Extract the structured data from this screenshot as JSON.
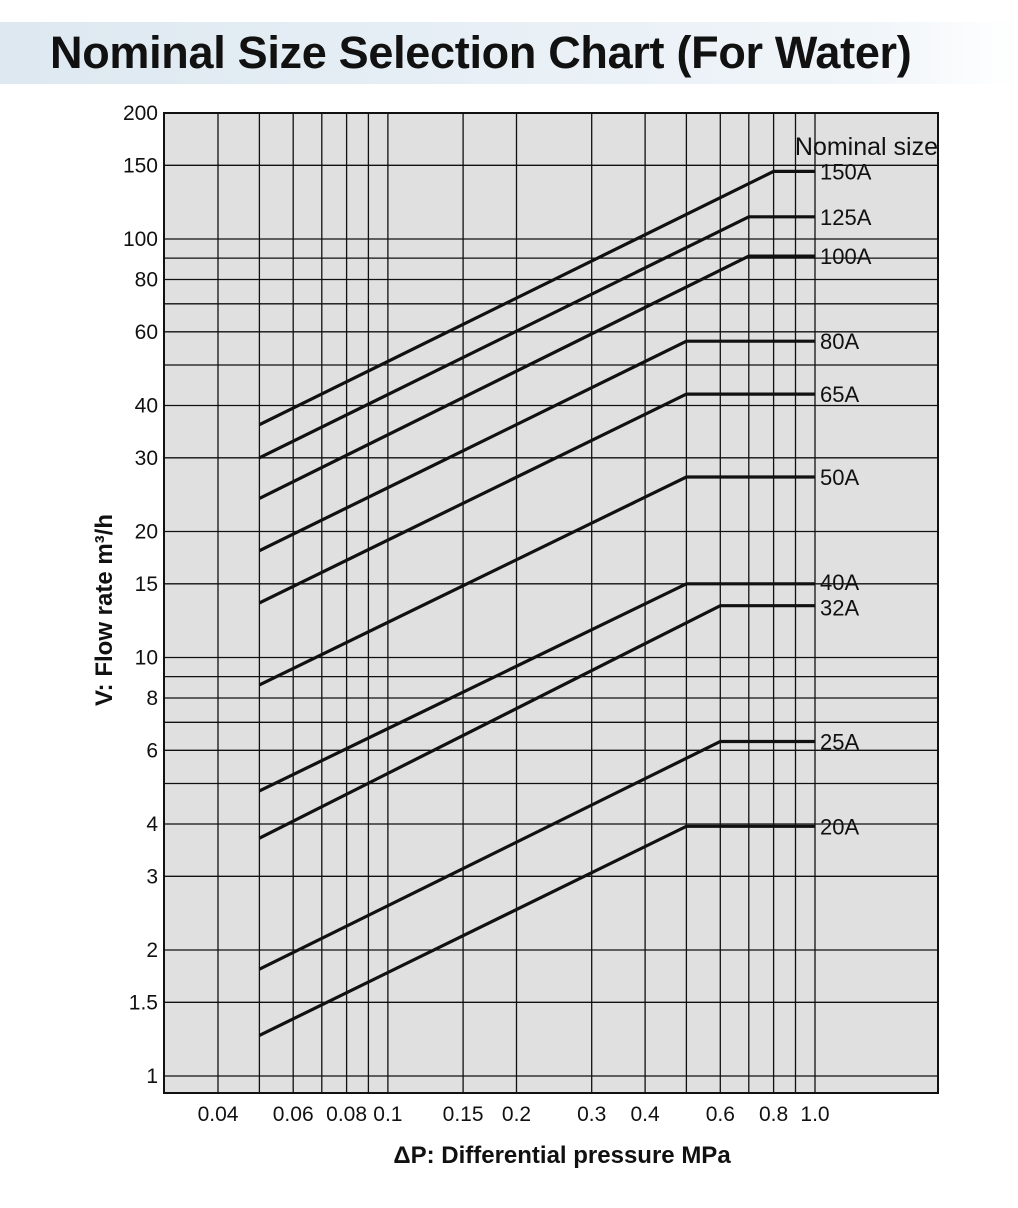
{
  "title": "Nominal Size Selection Chart (For Water)",
  "chart_data": {
    "type": "line",
    "title": "Nominal Size Selection Chart (For Water)",
    "xlabel": "ΔP: Differential pressure MPa",
    "ylabel": "V: Flow rate m³/h",
    "x_scale": "log",
    "y_scale": "log",
    "xlim": [
      0.03,
      1.4
    ],
    "ylim": [
      0.9,
      200
    ],
    "x_ticks": [
      0.04,
      0.06,
      0.08,
      0.1,
      0.15,
      0.2,
      0.3,
      0.4,
      0.6,
      0.8,
      1.0
    ],
    "x_tick_labels": [
      "0.04",
      "0.06",
      "0.08",
      "0.1",
      "0.15",
      "0.2",
      "0.3",
      "0.4",
      "0.6",
      "0.8",
      "1.0"
    ],
    "y_ticks": [
      1,
      1.5,
      2,
      3,
      4,
      6,
      8,
      10,
      15,
      20,
      30,
      40,
      60,
      80,
      100,
      150,
      200
    ],
    "y_tick_labels": [
      "1",
      "1.5",
      "2",
      "3",
      "4",
      "6",
      "8",
      "10",
      "15",
      "20",
      "30",
      "40",
      "60",
      "80",
      "100",
      "150",
      "200"
    ],
    "x_gridlines": [
      0.04,
      0.05,
      0.06,
      0.07,
      0.08,
      0.09,
      0.1,
      0.15,
      0.2,
      0.3,
      0.4,
      0.5,
      0.6,
      0.7,
      0.8,
      0.9,
      1.0
    ],
    "y_gridlines": [
      1,
      1.5,
      2,
      3,
      4,
      5,
      6,
      7,
      8,
      9,
      10,
      15,
      20,
      30,
      40,
      50,
      60,
      70,
      80,
      90,
      100,
      150,
      200
    ],
    "grid": true,
    "legend_title": "Nominal size",
    "series": [
      {
        "name": "150A",
        "x": [
          0.05,
          0.8,
          1.0
        ],
        "y": [
          36,
          145,
          145
        ]
      },
      {
        "name": "125A",
        "x": [
          0.05,
          0.7,
          1.0
        ],
        "y": [
          30,
          113,
          113
        ]
      },
      {
        "name": "100A",
        "x": [
          0.05,
          0.7,
          1.0
        ],
        "y": [
          24,
          91,
          91
        ]
      },
      {
        "name": "80A",
        "x": [
          0.05,
          0.5,
          1.0
        ],
        "y": [
          18,
          57,
          57
        ]
      },
      {
        "name": "65A",
        "x": [
          0.05,
          0.5,
          1.0
        ],
        "y": [
          13.5,
          42.6,
          42.6
        ]
      },
      {
        "name": "50A",
        "x": [
          0.05,
          0.5,
          1.0
        ],
        "y": [
          8.6,
          27,
          27
        ]
      },
      {
        "name": "40A",
        "x": [
          0.05,
          0.5,
          1.0
        ],
        "y": [
          4.8,
          15,
          15
        ]
      },
      {
        "name": "32A",
        "x": [
          0.05,
          0.6,
          1.0
        ],
        "y": [
          3.7,
          13.3,
          13.3
        ]
      },
      {
        "name": "25A",
        "x": [
          0.05,
          0.6,
          1.0
        ],
        "y": [
          1.8,
          6.3,
          6.3
        ]
      },
      {
        "name": "20A",
        "x": [
          0.05,
          0.5,
          1.0
        ],
        "y": [
          1.25,
          3.95,
          3.95
        ]
      }
    ]
  }
}
